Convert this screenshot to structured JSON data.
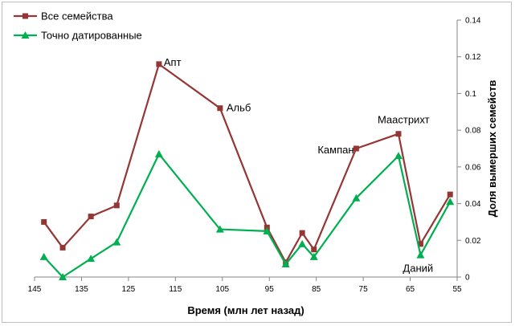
{
  "chart_data": {
    "type": "line",
    "xlabel": "Время (млн лет назад)",
    "ylabel": "Доля вымерших семейств",
    "xlim": [
      145,
      55
    ],
    "x_ticks": [
      145,
      135,
      125,
      115,
      105,
      95,
      85,
      75,
      65,
      55
    ],
    "ylim": [
      0,
      0.14
    ],
    "y_ticks": [
      0,
      0.02,
      0.04,
      0.06,
      0.08,
      0.1,
      0.12,
      0.14
    ],
    "grid": false,
    "legend_position": "top-left",
    "series": [
      {
        "name": "Все семейства",
        "color": "#943634",
        "marker": "square",
        "x": [
          143,
          139,
          133,
          127.5,
          118.5,
          105.5,
          95.5,
          91.5,
          88,
          85.5,
          76.5,
          67.5,
          62.8,
          56.5
        ],
        "y": [
          0.03,
          0.016,
          0.033,
          0.039,
          0.116,
          0.092,
          0.027,
          0.008,
          0.024,
          0.015,
          0.07,
          0.078,
          0.018,
          0.045
        ]
      },
      {
        "name": "Точно датированные",
        "color": "#00b050",
        "marker": "triangle",
        "x": [
          143,
          139,
          133,
          127.5,
          118.5,
          105.5,
          95.5,
          91.5,
          88,
          85.5,
          76.5,
          67.5,
          62.8,
          56.5
        ],
        "y": [
          0.011,
          0.0,
          0.01,
          0.019,
          0.067,
          0.026,
          0.025,
          0.007,
          0.018,
          0.011,
          0.043,
          0.066,
          0.012,
          0.041
        ]
      }
    ],
    "annotations": [
      {
        "text": "Апт",
        "x": 118.5,
        "y": 0.116
      },
      {
        "text": "Альб",
        "x": 105.5,
        "y": 0.092
      },
      {
        "text": "Кампан",
        "x": 76.5,
        "y": 0.07
      },
      {
        "text": "Маастрихт",
        "x": 67.5,
        "y": 0.078
      },
      {
        "text": "Даний",
        "x": 62.8,
        "y": 0.012
      }
    ]
  }
}
